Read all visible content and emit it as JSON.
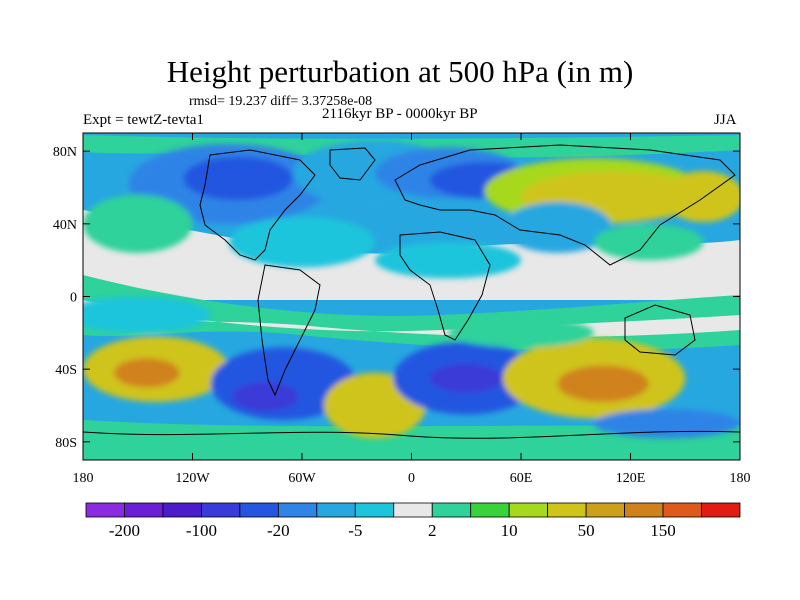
{
  "title": "Height perturbation at 500 hPa (in m)",
  "stats_line": "rmsd= 19.237 diff= 3.37258e-08",
  "left_label": "Expt = tewtZ-tevta1",
  "center_label": "2116kyr BP - 0000kyr BP",
  "right_label": "JJA",
  "map": {
    "projection": "cylindrical-equidistant",
    "lon_range": [
      -180,
      180
    ],
    "lat_range": [
      -90,
      90
    ],
    "lon_ticks": [
      {
        "value": -180,
        "label": "180"
      },
      {
        "value": -120,
        "label": "120W"
      },
      {
        "value": -60,
        "label": "60W"
      },
      {
        "value": 0,
        "label": "0"
      },
      {
        "value": 60,
        "label": "60E"
      },
      {
        "value": 120,
        "label": "120E"
      },
      {
        "value": 180,
        "label": "180"
      }
    ],
    "lat_ticks": [
      {
        "value": 80,
        "label": "80N"
      },
      {
        "value": 40,
        "label": "40N"
      },
      {
        "value": 0,
        "label": "0"
      },
      {
        "value": -40,
        "label": "40S"
      },
      {
        "value": -80,
        "label": "80S"
      }
    ]
  },
  "colorbar": {
    "colors": [
      "#8a2be2",
      "#6a1fd6",
      "#4b1ccc",
      "#3a3ad8",
      "#2456e0",
      "#2f84e6",
      "#27a7e0",
      "#1dc4dc",
      "#e8e8e8",
      "#2ed29a",
      "#3ad23a",
      "#a6d81e",
      "#cfc41a",
      "#cca01a",
      "#d0821a",
      "#de5a1c",
      "#e01c14"
    ],
    "labels": [
      {
        "text": "-200",
        "boundary": 1
      },
      {
        "text": "-100",
        "boundary": 3
      },
      {
        "text": "-20",
        "boundary": 5
      },
      {
        "text": "-5",
        "boundary": 7
      },
      {
        "text": "2",
        "boundary": 9
      },
      {
        "text": "10",
        "boundary": 11
      },
      {
        "text": "50",
        "boundary": 13
      },
      {
        "text": "150",
        "boundary": 15
      }
    ]
  },
  "field_blobs": [
    {
      "lon": -100,
      "lat": 62,
      "rx": 55,
      "ry": 22,
      "color": "#2f84e6"
    },
    {
      "lon": -95,
      "lat": 65,
      "rx": 30,
      "ry": 12,
      "color": "#2456e0"
    },
    {
      "lon": -20,
      "lat": 68,
      "rx": 45,
      "ry": 18,
      "color": "#27a7e0"
    },
    {
      "lon": 20,
      "lat": 68,
      "rx": 40,
      "ry": 14,
      "color": "#2f84e6"
    },
    {
      "lon": 40,
      "lat": 64,
      "rx": 30,
      "ry": 10,
      "color": "#2456e0"
    },
    {
      "lon": 100,
      "lat": 58,
      "rx": 60,
      "ry": 18,
      "color": "#a6d81e"
    },
    {
      "lon": 110,
      "lat": 55,
      "rx": 50,
      "ry": 14,
      "color": "#cfc41a"
    },
    {
      "lon": 160,
      "lat": 55,
      "rx": 22,
      "ry": 14,
      "color": "#cfc41a"
    },
    {
      "lon": 80,
      "lat": 38,
      "rx": 30,
      "ry": 14,
      "color": "#27a7e0"
    },
    {
      "lon": 130,
      "lat": 30,
      "rx": 30,
      "ry": 10,
      "color": "#2ed29a"
    },
    {
      "lon": -150,
      "lat": 40,
      "rx": 30,
      "ry": 16,
      "color": "#2ed29a"
    },
    {
      "lon": -60,
      "lat": 30,
      "rx": 40,
      "ry": 14,
      "color": "#1dc4dc"
    },
    {
      "lon": 20,
      "lat": 20,
      "rx": 40,
      "ry": 10,
      "color": "#1dc4dc"
    },
    {
      "lon": -150,
      "lat": -10,
      "rx": 40,
      "ry": 10,
      "color": "#1dc4dc"
    },
    {
      "lon": -140,
      "lat": -40,
      "rx": 40,
      "ry": 18,
      "color": "#cfc41a"
    },
    {
      "lon": -145,
      "lat": -42,
      "rx": 18,
      "ry": 8,
      "color": "#d0821a"
    },
    {
      "lon": -70,
      "lat": -48,
      "rx": 40,
      "ry": 20,
      "color": "#2456e0"
    },
    {
      "lon": -80,
      "lat": -55,
      "rx": 18,
      "ry": 8,
      "color": "#3a3ad8"
    },
    {
      "lon": -20,
      "lat": -60,
      "rx": 28,
      "ry": 18,
      "color": "#cfc41a"
    },
    {
      "lon": 30,
      "lat": -45,
      "rx": 40,
      "ry": 20,
      "color": "#2456e0"
    },
    {
      "lon": 30,
      "lat": -45,
      "rx": 20,
      "ry": 8,
      "color": "#3a3ad8"
    },
    {
      "lon": 100,
      "lat": -45,
      "rx": 50,
      "ry": 22,
      "color": "#cfc41a"
    },
    {
      "lon": 105,
      "lat": -48,
      "rx": 25,
      "ry": 10,
      "color": "#d0821a"
    },
    {
      "lon": 140,
      "lat": -70,
      "rx": 40,
      "ry": 8,
      "color": "#2f84e6"
    },
    {
      "lon": 60,
      "lat": -20,
      "rx": 40,
      "ry": 8,
      "color": "#2ed29a"
    }
  ]
}
